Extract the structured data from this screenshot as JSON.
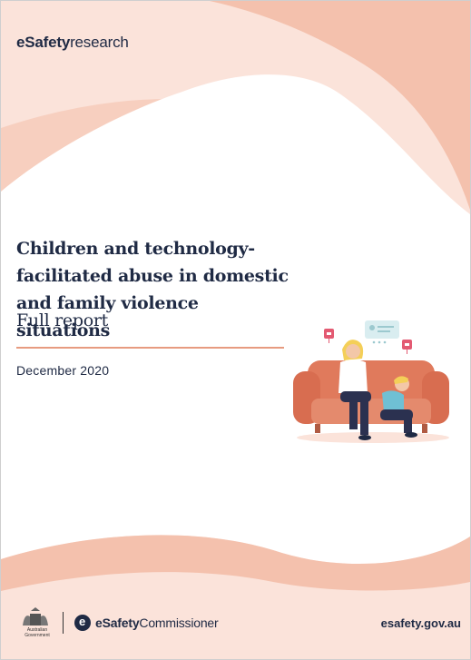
{
  "brand": {
    "bold": "eSafety",
    "light": "research"
  },
  "title": "Children and technology-facilitated abuse in domestic and family violence situations",
  "subtitle": "Full report",
  "date": "December 2020",
  "footer": {
    "gov_caption": "Australian Government",
    "commissioner_bold": "eSafety",
    "commissioner_light": "Commissioner",
    "url": "esafety.gov.au"
  },
  "colors": {
    "blob_light": "#fbe3da",
    "blob_mid": "#f4c1ad",
    "accent_rule": "#e79b80",
    "text_navy": "#1f2a44",
    "sofa": "#e07a5c"
  }
}
